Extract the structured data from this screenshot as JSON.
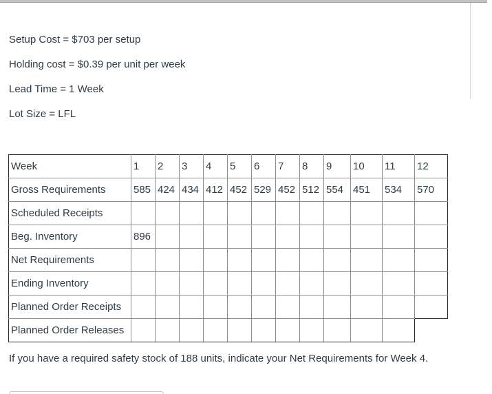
{
  "page": {
    "background": "#ffffff",
    "text_color": "#2d3b45",
    "top_bar_color": "#c2c2c2",
    "table_outer_border_color": "#2b2b2b",
    "table_grid_color": "#8d8d8d"
  },
  "problem": {
    "lines": [
      "Setup Cost = $703 per setup",
      "Holding cost = $0.39 per unit per week",
      "Lead Time = 1 Week",
      "Lot Size = LFL"
    ]
  },
  "table": {
    "rows": [
      {
        "label": "Week",
        "cells": [
          "1",
          "2",
          "3",
          "4",
          "5",
          "6",
          "7",
          "8",
          "9",
          "10",
          "11",
          "12"
        ]
      },
      {
        "label": "Gross Requirements",
        "cells": [
          "585",
          "424",
          "434",
          "412",
          "452",
          "529",
          "452",
          "512",
          "554",
          "451",
          "534",
          "570"
        ]
      },
      {
        "label": "Scheduled Receipts",
        "cells": [
          "",
          "",
          "",
          "",
          "",
          "",
          "",
          "",
          "",
          "",
          "",
          ""
        ]
      },
      {
        "label": "Beg. Inventory",
        "cells": [
          "896",
          "",
          "",
          "",
          "",
          "",
          "",
          "",
          "",
          "",
          "",
          ""
        ]
      },
      {
        "label": "Net Requirements",
        "cells": [
          "",
          "",
          "",
          "",
          "",
          "",
          "",
          "",
          "",
          "",
          "",
          ""
        ]
      },
      {
        "label": "Ending Inventory",
        "cells": [
          "",
          "",
          "",
          "",
          "",
          "",
          "",
          "",
          "",
          "",
          "",
          ""
        ]
      },
      {
        "label": "Planned Order Receipts",
        "cells": [
          "",
          "",
          "",
          "",
          "",
          "",
          "",
          "",
          "",
          "",
          "",
          ""
        ]
      },
      {
        "label": "Planned Order Releases",
        "cells": [
          "",
          "",
          "",
          "",
          "",
          "",
          "",
          "",
          "",
          "",
          ""
        ]
      }
    ]
  },
  "question": {
    "text": "If you have a required safety stock of 188 units, indicate your Net Requirements for Week 4."
  },
  "answer_input": {
    "value": "",
    "placeholder": ""
  }
}
